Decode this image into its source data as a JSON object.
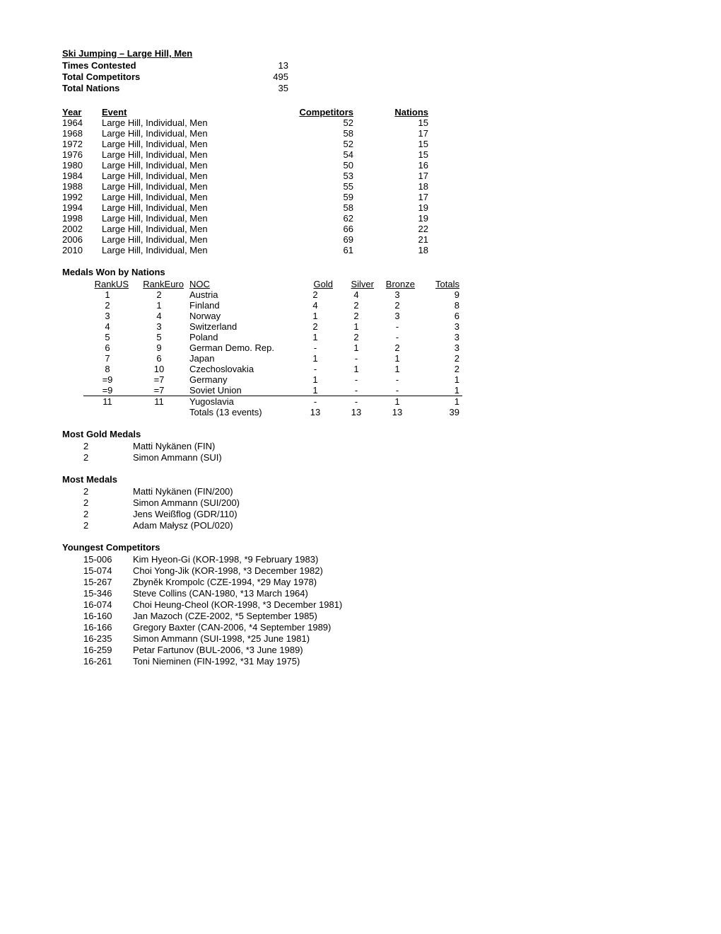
{
  "header": {
    "title": "Ski Jumping – Large Hill, Men",
    "rows": [
      {
        "label": "Times Contested",
        "value": "13"
      },
      {
        "label": "Total Competitors",
        "value": "495"
      },
      {
        "label": "Total Nations",
        "value": "35"
      }
    ]
  },
  "events": {
    "columns": [
      "Year",
      "Event",
      "Competitors",
      "Nations"
    ],
    "rows": [
      {
        "year": "1964",
        "event": "Large Hill, Individual, Men",
        "comp": "52",
        "nat": "15"
      },
      {
        "year": "1968",
        "event": "Large Hill, Individual, Men",
        "comp": "58",
        "nat": "17"
      },
      {
        "year": "1972",
        "event": "Large Hill, Individual, Men",
        "comp": "52",
        "nat": "15"
      },
      {
        "year": "1976",
        "event": "Large Hill, Individual, Men",
        "comp": "54",
        "nat": "15"
      },
      {
        "year": "1980",
        "event": "Large Hill, Individual, Men",
        "comp": "50",
        "nat": "16"
      },
      {
        "year": "1984",
        "event": "Large Hill, Individual, Men",
        "comp": "53",
        "nat": "17"
      },
      {
        "year": "1988",
        "event": "Large Hill, Individual, Men",
        "comp": "55",
        "nat": "18"
      },
      {
        "year": "1992",
        "event": "Large Hill, Individual, Men",
        "comp": "59",
        "nat": "17"
      },
      {
        "year": "1994",
        "event": "Large Hill, Individual, Men",
        "comp": "58",
        "nat": "19"
      },
      {
        "year": "1998",
        "event": "Large Hill, Individual, Men",
        "comp": "62",
        "nat": "19"
      },
      {
        "year": "2002",
        "event": "Large Hill, Individual, Men",
        "comp": "66",
        "nat": "22"
      },
      {
        "year": "2006",
        "event": "Large Hill, Individual, Men",
        "comp": "69",
        "nat": "21"
      },
      {
        "year": "2010",
        "event": "Large Hill, Individual, Men",
        "comp": "61",
        "nat": "18"
      }
    ]
  },
  "medals": {
    "heading": "Medals Won by Nations",
    "columns": [
      "RankUS",
      "RankEuro",
      "NOC",
      "Gold",
      "Silver",
      "Bronze",
      "Totals"
    ],
    "rows": [
      {
        "rus": "1",
        "reu": "2",
        "noc": "Austria",
        "g": "2",
        "s": "4",
        "b": "3",
        "t": "9"
      },
      {
        "rus": "2",
        "reu": "1",
        "noc": "Finland",
        "g": "4",
        "s": "2",
        "b": "2",
        "t": "8"
      },
      {
        "rus": "3",
        "reu": "4",
        "noc": "Norway",
        "g": "1",
        "s": "2",
        "b": "3",
        "t": "6"
      },
      {
        "rus": "4",
        "reu": "3",
        "noc": "Switzerland",
        "g": "2",
        "s": "1",
        "b": "-",
        "t": "3"
      },
      {
        "rus": "5",
        "reu": "5",
        "noc": "Poland",
        "g": "1",
        "s": "2",
        "b": "-",
        "t": "3"
      },
      {
        "rus": "6",
        "reu": "9",
        "noc": "German Demo. Rep.",
        "g": "-",
        "s": "1",
        "b": "2",
        "t": "3"
      },
      {
        "rus": "7",
        "reu": "6",
        "noc": "Japan",
        "g": "1",
        "s": "-",
        "b": "1",
        "t": "2"
      },
      {
        "rus": "8",
        "reu": "10",
        "noc": "Czechoslovakia",
        "g": "-",
        "s": "1",
        "b": "1",
        "t": "2"
      },
      {
        "rus": "=9",
        "reu": "=7",
        "noc": "Germany",
        "g": "1",
        "s": "-",
        "b": "-",
        "t": "1"
      },
      {
        "rus": "=9",
        "reu": "=7",
        "noc": "Soviet Union",
        "g": "1",
        "s": "-",
        "b": "-",
        "t": "1"
      },
      {
        "rus": "11",
        "reu": "11",
        "noc": "Yugoslavia",
        "g": "-",
        "s": "-",
        "b": "1",
        "t": "1"
      }
    ],
    "totals": {
      "label": "Totals (13 events)",
      "g": "13",
      "s": "13",
      "b": "13",
      "t": "39"
    }
  },
  "mostGold": {
    "heading": "Most Gold Medals",
    "rows": [
      {
        "n": "2",
        "name": "Matti Nykänen (FIN)"
      },
      {
        "n": "2",
        "name": "Simon Ammann (SUI)"
      }
    ]
  },
  "mostMedals": {
    "heading": "Most Medals",
    "rows": [
      {
        "n": "2",
        "name": "Matti Nykänen (FIN/200)"
      },
      {
        "n": "2",
        "name": "Simon Ammann (SUI/200)"
      },
      {
        "n": "2",
        "name": "Jens Weißflog (GDR/110)"
      },
      {
        "n": "2",
        "name": "Adam Małysz (POL/020)"
      }
    ]
  },
  "youngest": {
    "heading": "Youngest Competitors",
    "rows": [
      {
        "n": "15-006",
        "name": "Kim Hyeon-Gi (KOR-1998, *9 February 1983)"
      },
      {
        "n": "15-074",
        "name": "Choi Yong-Jik (KOR-1998, *3 December 1982)"
      },
      {
        "n": "15-267",
        "name": "Zbyněk Krompolc (CZE-1994, *29 May 1978)"
      },
      {
        "n": "15-346",
        "name": "Steve Collins (CAN-1980, *13 March 1964)"
      },
      {
        "n": "16-074",
        "name": "Choi Heung-Cheol (KOR-1998, *3 December 1981)"
      },
      {
        "n": "16-160",
        "name": "Jan Mazoch (CZE-2002, *5 September 1985)"
      },
      {
        "n": "16-166",
        "name": "Gregory Baxter (CAN-2006, *4 September 1989)"
      },
      {
        "n": "16-235",
        "name": "Simon Ammann (SUI-1998, *25 June 1981)"
      },
      {
        "n": "16-259",
        "name": "Petar Fartunov (BUL-2006, *3 June 1989)"
      },
      {
        "n": "16-261",
        "name": "Toni Nieminen (FIN-1992, *31 May 1975)"
      }
    ]
  }
}
